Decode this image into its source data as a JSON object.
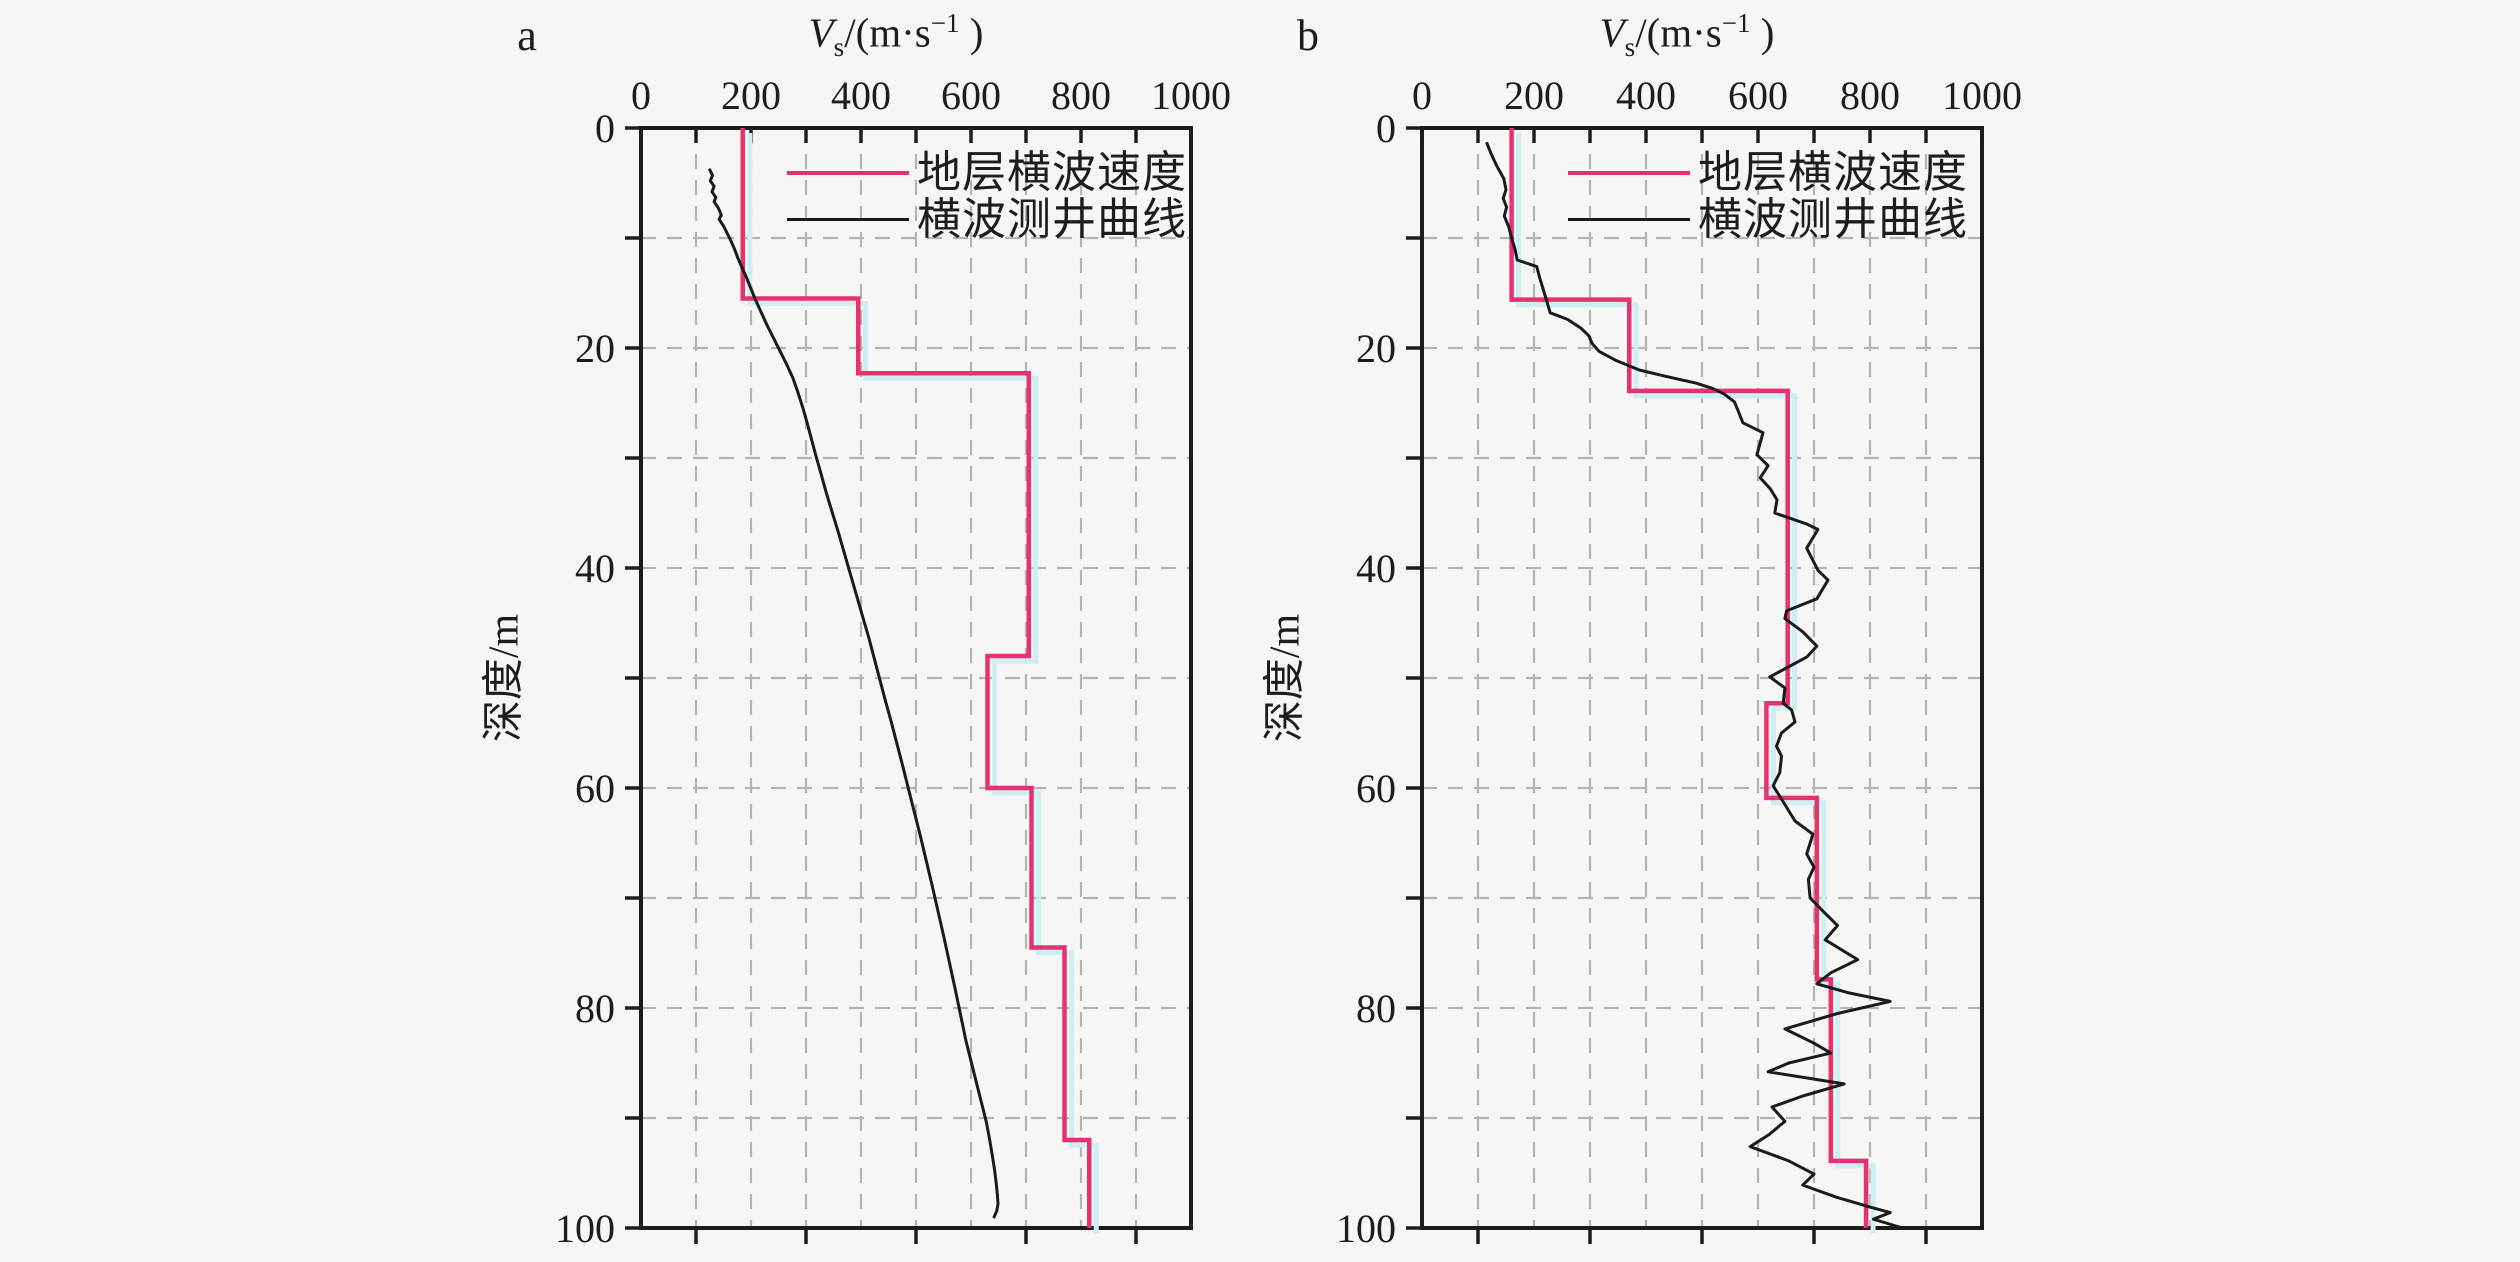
{
  "figure": {
    "background": "#f6f6f4",
    "axis_color": "#1d1d1b",
    "grid_color": "#b4b4b4",
    "text_color": "#1d1d1b",
    "step_shadow_color": "#cdeff2"
  },
  "chart_data": [
    {
      "type": "line",
      "panel_label": "a",
      "title": {
        "lead": "V",
        "sub": "s",
        "mid": "/(m·s",
        "sup": "−1",
        "end": " )"
      },
      "ylabel": "深度/m",
      "xlim": [
        0,
        1000
      ],
      "ylim": [
        0,
        100
      ],
      "x_major_ticks": [
        0,
        200,
        400,
        600,
        800,
        1000
      ],
      "x_minor_step": 100,
      "x_bottom_ticks": [
        100,
        300,
        500,
        700,
        900
      ],
      "y_major_ticks": [
        0,
        20,
        40,
        60,
        80,
        100
      ],
      "y_minor_step": 10,
      "grid": true,
      "legend_position": "top-right-inside",
      "legend": [
        {
          "label": "地层横波速度",
          "color": "#e8316f"
        },
        {
          "label": "横波测井曲线",
          "color": "#1b1b1b"
        }
      ],
      "series": [
        {
          "name": "地层横波速度",
          "kind": "step",
          "color": "#e8316f",
          "layer_boundaries_m": [
            0,
            15.5,
            22.3,
            48,
            60,
            74.5,
            92,
            100
          ],
          "layer_velocities": [
            185,
            395,
            705,
            630,
            710,
            770,
            815
          ]
        },
        {
          "name": "横波测井曲线",
          "kind": "curve",
          "color": "#1b1b1b",
          "points": [
            [
              125,
              3.8
            ],
            [
              130,
              4.3
            ],
            [
              126,
              4.8
            ],
            [
              133,
              5.3
            ],
            [
              129,
              5.8
            ],
            [
              136,
              6.3
            ],
            [
              133,
              6.7
            ],
            [
              141,
              7.3
            ],
            [
              146,
              7.9
            ],
            [
              142,
              8.3
            ],
            [
              150,
              8.9
            ],
            [
              156,
              9.5
            ],
            [
              163,
              10.2
            ],
            [
              170,
              11.0
            ],
            [
              176,
              11.8
            ],
            [
              183,
              12.6
            ],
            [
              191,
              13.5
            ],
            [
              199,
              14.5
            ],
            [
              207,
              15.5
            ],
            [
              217,
              16.6
            ],
            [
              228,
              17.8
            ],
            [
              240,
              19.0
            ],
            [
              252,
              20.2
            ],
            [
              264,
              21.4
            ],
            [
              276,
              22.7
            ],
            [
              285,
              24.0
            ],
            [
              294,
              25.4
            ],
            [
              302,
              26.8
            ],
            [
              310,
              28.3
            ],
            [
              318,
              29.8
            ],
            [
              327,
              31.4
            ],
            [
              337,
              33.2
            ],
            [
              348,
              35.0
            ],
            [
              359,
              36.8
            ],
            [
              370,
              38.7
            ],
            [
              381,
              40.6
            ],
            [
              392,
              42.5
            ],
            [
              403,
              44.4
            ],
            [
              414,
              46.3
            ],
            [
              424,
              48.2
            ],
            [
              434,
              50.1
            ],
            [
              444,
              52.0
            ],
            [
              455,
              54.0
            ],
            [
              466,
              56.1
            ],
            [
              477,
              58.2
            ],
            [
              487,
              60.2
            ],
            [
              498,
              62.4
            ],
            [
              509,
              64.6
            ],
            [
              520,
              66.9
            ],
            [
              531,
              69.2
            ],
            [
              541,
              71.4
            ],
            [
              551,
              73.6
            ],
            [
              561,
              75.9
            ],
            [
              571,
              78.2
            ],
            [
              581,
              80.6
            ],
            [
              591,
              83.0
            ],
            [
              601,
              85.0
            ],
            [
              611,
              87.0
            ],
            [
              620,
              88.8
            ],
            [
              628,
              90.4
            ],
            [
              634,
              92.0
            ],
            [
              639,
              93.5
            ],
            [
              643,
              94.8
            ],
            [
              646,
              96.0
            ],
            [
              648,
              97.0
            ],
            [
              649,
              97.8
            ],
            [
              647,
              98.4
            ],
            [
              642,
              99.0
            ]
          ]
        }
      ]
    },
    {
      "type": "line",
      "panel_label": "b",
      "title": {
        "lead": "V",
        "sub": "s",
        "mid": "/(m·s",
        "sup": "−1",
        "end": " )"
      },
      "ylabel": "深度/m",
      "xlim": [
        0,
        1000
      ],
      "ylim": [
        0,
        100
      ],
      "x_major_ticks": [
        0,
        200,
        400,
        600,
        800,
        1000
      ],
      "x_minor_step": 100,
      "x_bottom_ticks": [
        100,
        300,
        500,
        700,
        900
      ],
      "y_major_ticks": [
        0,
        20,
        40,
        60,
        80,
        100
      ],
      "y_minor_step": 10,
      "grid": true,
      "legend_position": "top-right-inside",
      "legend": [
        {
          "label": "地层横波速度",
          "color": "#e8316f"
        },
        {
          "label": "横波测井曲线",
          "color": "#1b1b1b"
        }
      ],
      "series": [
        {
          "name": "地层横波速度",
          "kind": "step",
          "color": "#e8316f",
          "layer_boundaries_m": [
            0,
            15.6,
            23.9,
            52.3,
            60.9,
            77.4,
            93.9,
            100
          ],
          "layer_velocities": [
            160,
            370,
            653,
            615,
            705,
            730,
            793
          ]
        },
        {
          "name": "横波测井曲线",
          "kind": "curve",
          "color": "#1b1b1b",
          "points": [
            [
              116,
              1.4
            ],
            [
              124,
              2.4
            ],
            [
              133,
              3.4
            ],
            [
              146,
              4.6
            ],
            [
              150,
              5.6
            ],
            [
              145,
              6.4
            ],
            [
              151,
              7.2
            ],
            [
              147,
              8.0
            ],
            [
              155,
              9.0
            ],
            [
              160,
              10.0
            ],
            [
              166,
              11.0
            ],
            [
              170,
              12.0
            ],
            [
              205,
              12.6
            ],
            [
              210,
              13.6
            ],
            [
              216,
              14.6
            ],
            [
              222,
              15.6
            ],
            [
              229,
              16.8
            ],
            [
              260,
              17.4
            ],
            [
              284,
              18.2
            ],
            [
              298,
              18.9
            ],
            [
              304,
              19.6
            ],
            [
              316,
              20.3
            ],
            [
              345,
              21.1
            ],
            [
              388,
              22.0
            ],
            [
              437,
              22.6
            ],
            [
              490,
              23.2
            ],
            [
              520,
              23.7
            ],
            [
              540,
              24.2
            ],
            [
              558,
              24.9
            ],
            [
              566,
              25.9
            ],
            [
              573,
              26.8
            ],
            [
              609,
              27.7
            ],
            [
              598,
              29.7
            ],
            [
              618,
              30.7
            ],
            [
              604,
              31.8
            ],
            [
              622,
              32.8
            ],
            [
              634,
              33.8
            ],
            [
              630,
              35.0
            ],
            [
              687,
              36.0
            ],
            [
              707,
              36.5
            ],
            [
              687,
              38.2
            ],
            [
              707,
              40.2
            ],
            [
              725,
              41.1
            ],
            [
              705,
              42.8
            ],
            [
              651,
              43.9
            ],
            [
              648,
              44.6
            ],
            [
              680,
              45.8
            ],
            [
              705,
              47.1
            ],
            [
              687,
              48.1
            ],
            [
              621,
              49.9
            ],
            [
              648,
              50.9
            ],
            [
              645,
              52.3
            ],
            [
              660,
              52.9
            ],
            [
              666,
              54.0
            ],
            [
              642,
              55.0
            ],
            [
              633,
              56.2
            ],
            [
              642,
              57.1
            ],
            [
              639,
              58.6
            ],
            [
              627,
              59.8
            ],
            [
              642,
              61.0
            ],
            [
              666,
              63.0
            ],
            [
              698,
              64.2
            ],
            [
              687,
              66.0
            ],
            [
              700,
              67.2
            ],
            [
              690,
              68.3
            ],
            [
              693,
              70.0
            ],
            [
              718,
              71.3
            ],
            [
              742,
              72.5
            ],
            [
              720,
              73.8
            ],
            [
              778,
              75.6
            ],
            [
              730,
              76.8
            ],
            [
              705,
              77.8
            ],
            [
              760,
              78.6
            ],
            [
              836,
              79.4
            ],
            [
              742,
              80.5
            ],
            [
              648,
              81.9
            ],
            [
              700,
              83.2
            ],
            [
              730,
              84.1
            ],
            [
              655,
              85.0
            ],
            [
              618,
              85.8
            ],
            [
              754,
              86.9
            ],
            [
              680,
              88.0
            ],
            [
              625,
              89.0
            ],
            [
              648,
              90.3
            ],
            [
              620,
              91.5
            ],
            [
              586,
              92.6
            ],
            [
              655,
              93.9
            ],
            [
              700,
              95.1
            ],
            [
              680,
              96.1
            ],
            [
              740,
              97.2
            ],
            [
              800,
              98.1
            ],
            [
              836,
              98.6
            ],
            [
              806,
              99.2
            ],
            [
              858,
              100.0
            ]
          ]
        }
      ]
    }
  ]
}
